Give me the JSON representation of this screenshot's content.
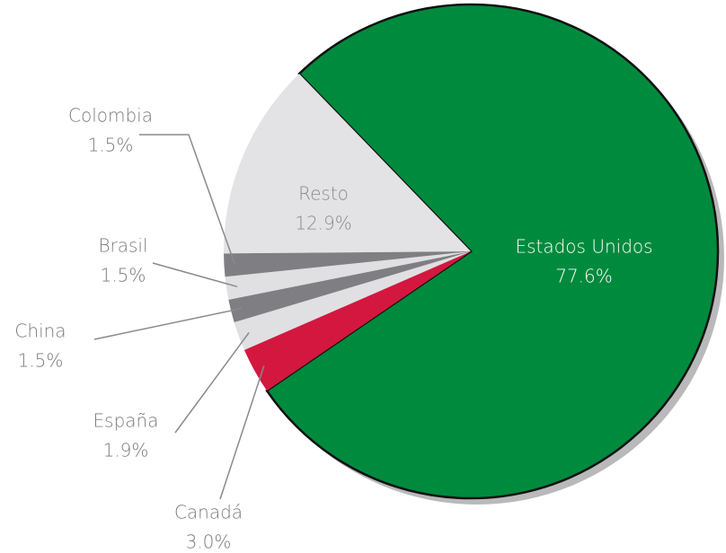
{
  "chart_data": {
    "type": "pie",
    "labels": [
      "Estados Unidos",
      "Canadá",
      "España",
      "China",
      "Brasil",
      "Colombia",
      "Resto"
    ],
    "values": [
      77.6,
      3.0,
      1.9,
      1.5,
      1.5,
      1.5,
      12.9
    ],
    "value_labels": [
      "77.6%",
      "3.0%",
      "1.9%",
      "1.5%",
      "1.5%",
      "1.5%",
      "12.9%"
    ],
    "colors": [
      "#008a3e",
      "#d4173f",
      "#e0e0e2",
      "#7f7f83",
      "#e0e0e2",
      "#7f7f83",
      "#e3e3e5"
    ]
  }
}
